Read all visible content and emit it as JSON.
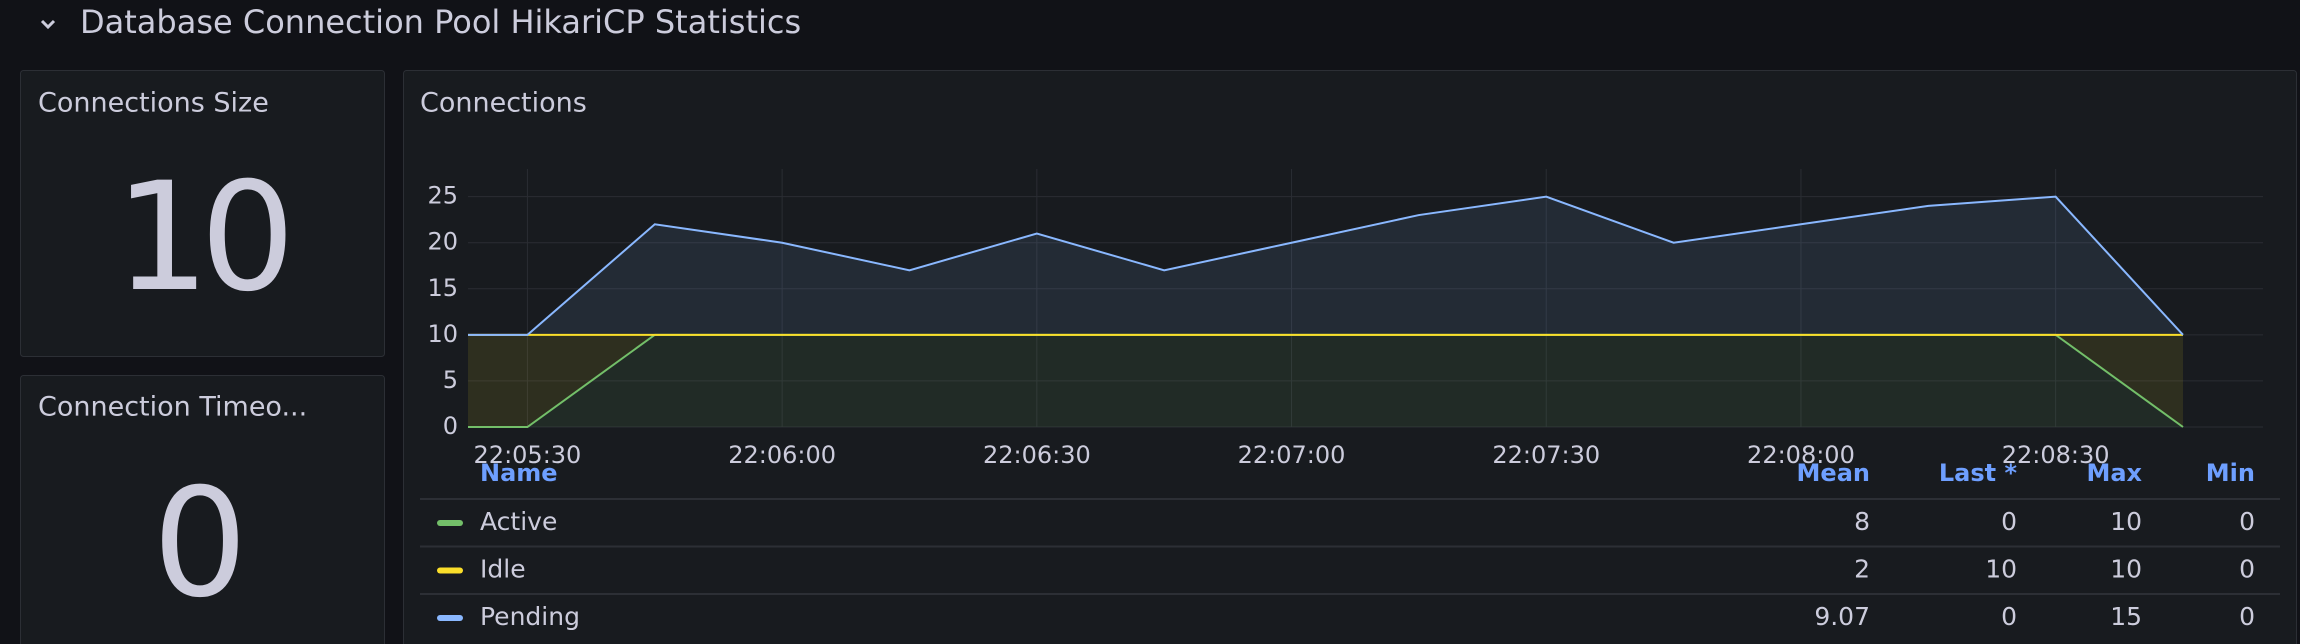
{
  "header": {
    "title": "Database Connection Pool HikariCP Statistics"
  },
  "panels": [
    {
      "title": "Connections Size",
      "value": 10
    },
    {
      "title": "Connection Timeo...",
      "value": 0
    }
  ],
  "chart_data": {
    "type": "line",
    "title": "Connections",
    "stacked": true,
    "x": [
      "22:05:23",
      "22:05:30",
      "22:05:45",
      "22:06:00",
      "22:06:15",
      "22:06:30",
      "22:06:45",
      "22:07:00",
      "22:07:15",
      "22:07:30",
      "22:07:45",
      "22:08:00",
      "22:08:15",
      "22:08:30",
      "22:08:45"
    ],
    "xlim": [
      "22:05:23",
      "22:08:45"
    ],
    "xticks": [
      "22:05:30",
      "22:06:00",
      "22:06:30",
      "22:07:00",
      "22:07:30",
      "22:08:00",
      "22:08:30"
    ],
    "ylim": [
      0,
      28
    ],
    "yticks": [
      0,
      5,
      10,
      15,
      20,
      25
    ],
    "grid": true,
    "series": [
      {
        "name": "Active",
        "color": "#73bf69",
        "values": [
          0,
          0,
          10,
          10,
          10,
          10,
          10,
          10,
          10,
          10,
          10,
          10,
          10,
          10,
          0
        ]
      },
      {
        "name": "Idle",
        "color": "#fade2a",
        "values": [
          10,
          10,
          0,
          0,
          0,
          0,
          0,
          0,
          0,
          0,
          0,
          0,
          0,
          0,
          10
        ]
      },
      {
        "name": "Pending",
        "color": "#8ab8ff",
        "values": [
          0,
          0,
          12,
          10,
          7,
          11,
          7,
          10,
          13,
          15,
          10,
          12,
          14,
          15,
          0
        ]
      }
    ]
  },
  "legend": {
    "columns": [
      "Name",
      "Mean",
      "Last *",
      "Max",
      "Min"
    ],
    "rows": [
      [
        "Active",
        8,
        0,
        10,
        0
      ],
      [
        "Idle",
        2,
        10,
        10,
        0
      ],
      [
        "Pending",
        9.07,
        0,
        15,
        0
      ]
    ]
  }
}
